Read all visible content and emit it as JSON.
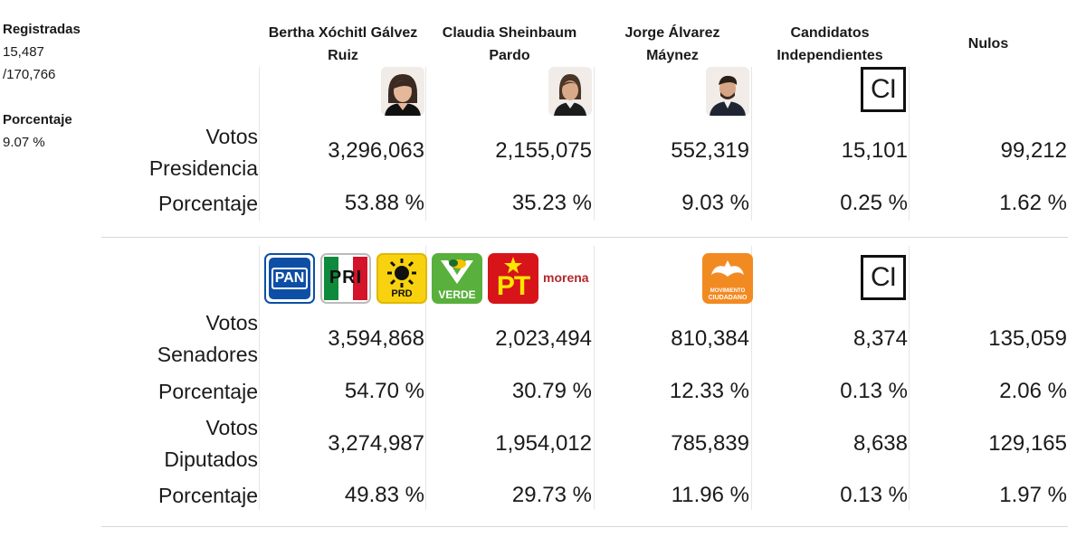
{
  "sidebar": {
    "registradas_label": "Registradas",
    "registradas_count": "15,487",
    "registradas_total": "/170,766",
    "porcentaje_label": "Porcentaje",
    "porcentaje_value": "9.07 %"
  },
  "columns": [
    {
      "line1": "Bertha Xóchitl Gálvez",
      "line2": "Ruiz"
    },
    {
      "line1": "Claudia Sheinbaum",
      "line2": "Pardo"
    },
    {
      "line1": "Jorge Álvarez",
      "line2": "Máynez"
    },
    {
      "line1": "Candidatos",
      "line2": "Independientes"
    },
    {
      "line1": "Nulos",
      "line2": ""
    }
  ],
  "ci_logo_text": "CI",
  "party_logos": {
    "pan": "PAN",
    "pri": "PRI",
    "prd": "PRD",
    "verde": "VERDE",
    "pt": "PT",
    "morena": "morena",
    "mc_line1": "MOVIMIENTO",
    "mc_line2": "CIUDADANO"
  },
  "presidencia": {
    "votos_label_1": "Votos",
    "votos_label_2": "Presidencia",
    "pct_label": "Porcentaje",
    "votos": [
      "3,296,063",
      "2,155,075",
      "552,319",
      "15,101",
      "99,212"
    ],
    "pct": [
      "53.88 %",
      "35.23 %",
      "9.03 %",
      "0.25 %",
      "1.62 %"
    ]
  },
  "senadores": {
    "votos_label_1": "Votos",
    "votos_label_2": "Senadores",
    "pct_label": "Porcentaje",
    "votos": [
      "3,594,868",
      "2,023,494",
      "810,384",
      "8,374",
      "135,059"
    ],
    "pct": [
      "54.70 %",
      "30.79 %",
      "12.33 %",
      "0.13 %",
      "2.06 %"
    ]
  },
  "diputados": {
    "votos_label_1": "Votos",
    "votos_label_2": "Diputados",
    "pct_label": "Porcentaje",
    "votos": [
      "3,274,987",
      "1,954,012",
      "785,839",
      "8,638",
      "129,165"
    ],
    "pct": [
      "49.83 %",
      "29.73 %",
      "11.96 %",
      "0.13 %",
      "1.97 %"
    ]
  },
  "colors": {
    "pan_blue": "#0d4fa6",
    "pri_green": "#0f8a3c",
    "pri_red": "#d4142a",
    "prd_yellow": "#f8d20f",
    "verde_green": "#59b03c",
    "pt_red": "#d7141a",
    "pt_yellow": "#ffe600",
    "morena_red": "#b3282d",
    "mc_orange": "#f28a22"
  }
}
